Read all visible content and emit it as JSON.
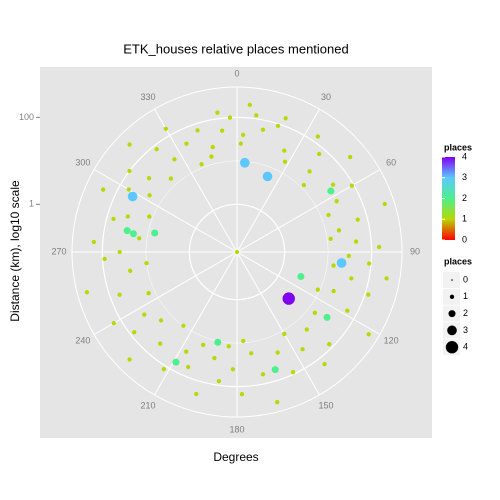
{
  "chart_data": {
    "type": "polar_scatter",
    "title": "ETK_houses relative places mentioned",
    "x_label": "Degrees",
    "y_label": "Distance (km), log10 scale",
    "thetalim": [
      0,
      360
    ],
    "thetaticks": [
      0,
      30,
      60,
      90,
      120,
      150,
      180,
      210,
      240,
      270,
      300,
      330
    ],
    "ylim": [
      0.08,
      500
    ],
    "log_y": true,
    "yticks": [
      1,
      100
    ],
    "minor_grid": [
      10
    ],
    "grid": true,
    "color_legend": {
      "title": "places",
      "ticks": [
        0,
        1,
        2,
        3,
        4
      ],
      "colors": [
        "#ff0000",
        "#b8d800",
        "#4cf08c",
        "#5cc8ff",
        "#8000f0"
      ]
    },
    "size_legend": {
      "title": "places",
      "values": [
        0,
        1,
        2,
        3,
        4
      ]
    },
    "series": [
      {
        "name": "places",
        "x": [
          132,
          298,
          5,
          22,
          96,
          111,
          57,
          283,
          281,
          280,
          126,
          162,
          192,
          209,
          0,
          352,
          357,
          353,
          347,
          345,
          5,
          8,
          12,
          3,
          2,
          18,
          20,
          25,
          28,
          35,
          40,
          42,
          45,
          50,
          55,
          60,
          63,
          68,
          72,
          75,
          78,
          82,
          85,
          88,
          92,
          95,
          98,
          100,
          103,
          108,
          112,
          115,
          118,
          122,
          128,
          135,
          138,
          142,
          146,
          150,
          155,
          158,
          165,
          168,
          172,
          176,
          178,
          182,
          185,
          188,
          192,
          196,
          200,
          203,
          207,
          212,
          216,
          220,
          225,
          228,
          232,
          236,
          240,
          245,
          250,
          255,
          260,
          263,
          267,
          270,
          274,
          278,
          285,
          288,
          292,
          295,
          300,
          303,
          307,
          310,
          315,
          318,
          322,
          326,
          330,
          335,
          338,
          342
        ],
        "values": [
          3.2,
          42,
          9.2,
          6,
          21,
          3,
          30,
          7,
          30,
          21,
          29,
          56,
          10.6,
          63,
          0.08,
          138,
          100,
          52,
          24,
          15,
          200,
          120,
          60,
          40,
          25,
          90,
          150,
          30,
          18,
          140,
          70,
          25,
          12,
          200,
          40,
          90,
          30,
          15,
          300,
          60,
          20,
          12,
          45,
          150,
          30,
          90,
          14,
          250,
          40,
          120,
          20,
          9,
          60,
          300,
          15,
          80,
          20,
          150,
          40,
          12,
          90,
          25,
          300,
          60,
          18,
          9,
          150,
          40,
          12,
          80,
          25,
          200,
          15,
          60,
          30,
          120,
          10,
          45,
          250,
          18,
          80,
          30,
          150,
          14,
          60,
          300,
          25,
          10,
          90,
          40,
          160,
          15,
          70,
          35,
          12,
          200,
          60,
          20,
          100,
          35,
          250,
          15,
          80,
          30,
          150,
          45,
          12,
          70
        ],
        "places": [
          4,
          3,
          3,
          3,
          3,
          2,
          2,
          2,
          2,
          2,
          2,
          2,
          2,
          2,
          1,
          1,
          1,
          1,
          1,
          1,
          1,
          1,
          1,
          1,
          1,
          1,
          1,
          1,
          1,
          1,
          1,
          1,
          1,
          1,
          1,
          1,
          1,
          1,
          1,
          1,
          1,
          1,
          1,
          1,
          1,
          1,
          1,
          1,
          1,
          1,
          1,
          1,
          1,
          1,
          1,
          1,
          1,
          1,
          1,
          1,
          1,
          1,
          1,
          1,
          1,
          1,
          1,
          1,
          1,
          1,
          1,
          1,
          1,
          1,
          1,
          1,
          1,
          1,
          1,
          1,
          1,
          1,
          1,
          1,
          1,
          1,
          1,
          1,
          1,
          1,
          1,
          1,
          1,
          1,
          1,
          1,
          1,
          1,
          1,
          1,
          1,
          1,
          1,
          1,
          1,
          1,
          1,
          1
        ]
      }
    ]
  }
}
